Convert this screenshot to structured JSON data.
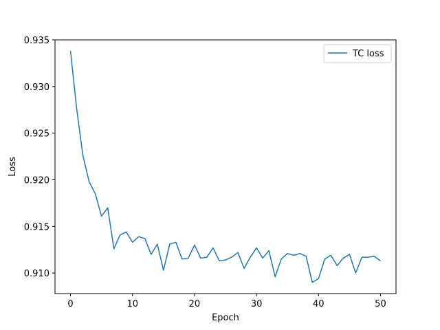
{
  "chart_data": {
    "type": "line",
    "title": "",
    "xlabel": "Epoch",
    "ylabel": "Loss",
    "xlim": [
      -2.5,
      52.5
    ],
    "ylim": [
      0.9078,
      0.935
    ],
    "xticks": [
      0,
      10,
      20,
      30,
      40,
      50
    ],
    "yticks": [
      0.91,
      0.915,
      0.92,
      0.925,
      0.93,
      0.935
    ],
    "ytick_labels": [
      "0.910",
      "0.915",
      "0.920",
      "0.925",
      "0.930",
      "0.935"
    ],
    "legend_position": "top-right",
    "series": [
      {
        "name": "TC loss",
        "color": "#1f77b4",
        "x": [
          0,
          1,
          2,
          3,
          4,
          5,
          6,
          7,
          8,
          9,
          10,
          11,
          12,
          13,
          14,
          15,
          16,
          17,
          18,
          19,
          20,
          21,
          22,
          23,
          24,
          25,
          26,
          27,
          28,
          29,
          30,
          31,
          32,
          33,
          34,
          35,
          36,
          37,
          38,
          39,
          40,
          41,
          42,
          43,
          44,
          45,
          46,
          47,
          48,
          49,
          50
        ],
        "values": [
          0.9338,
          0.9276,
          0.9226,
          0.9198,
          0.9185,
          0.9161,
          0.917,
          0.9126,
          0.9141,
          0.9144,
          0.9133,
          0.9139,
          0.9137,
          0.912,
          0.9131,
          0.9103,
          0.9131,
          0.9133,
          0.9115,
          0.9116,
          0.913,
          0.9116,
          0.9117,
          0.9127,
          0.9113,
          0.9114,
          0.9117,
          0.9122,
          0.9105,
          0.9117,
          0.9127,
          0.9116,
          0.9124,
          0.9096,
          0.9115,
          0.9121,
          0.9119,
          0.9121,
          0.9118,
          0.909,
          0.9094,
          0.9115,
          0.9119,
          0.9108,
          0.9116,
          0.912,
          0.91,
          0.9117,
          0.9117,
          0.9118,
          0.9113
        ]
      }
    ]
  }
}
